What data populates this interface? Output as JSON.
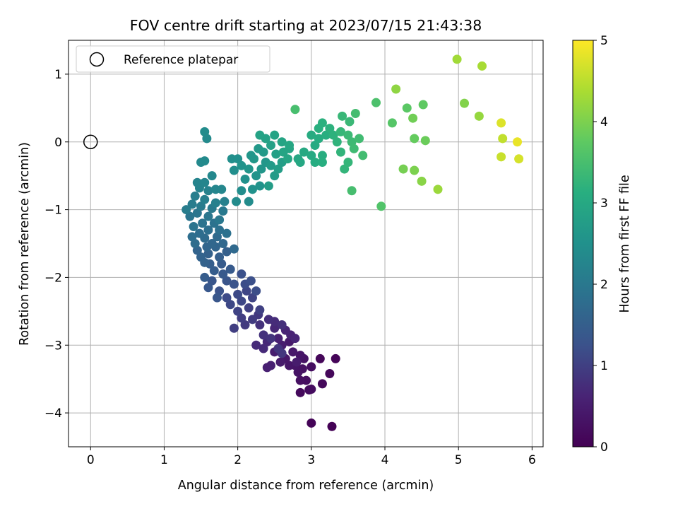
{
  "chart_data": {
    "type": "scatter",
    "title": "FOV centre drift starting at 2023/07/15 21:43:38",
    "xlabel": "Angular distance from reference (arcmin)",
    "ylabel": "Rotation from reference (arcmin)",
    "xlim": [
      -0.3,
      6.15
    ],
    "ylim": [
      -4.5,
      1.5
    ],
    "xticks": [
      0,
      1,
      2,
      3,
      4,
      5,
      6
    ],
    "yticks": [
      1,
      0,
      -1,
      -2,
      -3,
      -4
    ],
    "grid": true,
    "legend": {
      "placement": "upper-left",
      "entries": [
        "Reference platepar"
      ]
    },
    "reference_point": {
      "x": 0,
      "y": 0,
      "marker": "open-circle"
    },
    "colorbar": {
      "label": "Hours from first FF file",
      "range": [
        0,
        5
      ],
      "ticks": [
        0,
        1,
        2,
        3,
        4,
        5
      ],
      "colormap": "viridis"
    },
    "series": [
      {
        "points": [
          [
            3.28,
            -4.2,
            0.02
          ],
          [
            3.0,
            -4.15,
            0.05
          ],
          [
            3.33,
            -3.2,
            0.08
          ],
          [
            3.12,
            -3.2,
            0.1
          ],
          [
            3.25,
            -3.42,
            0.12
          ],
          [
            3.15,
            -3.57,
            0.14
          ],
          [
            2.85,
            -3.7,
            0.16
          ],
          [
            2.97,
            -3.66,
            0.18
          ],
          [
            3.0,
            -3.65,
            0.2
          ],
          [
            3.0,
            -3.32,
            0.22
          ],
          [
            2.93,
            -3.52,
            0.24
          ],
          [
            2.85,
            -3.52,
            0.26
          ],
          [
            2.88,
            -3.35,
            0.28
          ],
          [
            2.9,
            -3.2,
            0.3
          ],
          [
            2.82,
            -3.4,
            0.32
          ],
          [
            2.78,
            -3.3,
            0.34
          ],
          [
            2.85,
            -3.15,
            0.36
          ],
          [
            2.7,
            -3.3,
            0.38
          ],
          [
            2.65,
            -3.2,
            0.4
          ],
          [
            2.75,
            -3.1,
            0.42
          ],
          [
            2.7,
            -2.95,
            0.44
          ],
          [
            2.58,
            -3.25,
            0.46
          ],
          [
            2.8,
            -3.25,
            0.48
          ],
          [
            2.6,
            -3.0,
            0.5
          ],
          [
            2.5,
            -3.1,
            0.52
          ],
          [
            2.45,
            -3.3,
            0.54
          ],
          [
            2.4,
            -3.33,
            0.56
          ],
          [
            2.55,
            -2.9,
            0.58
          ],
          [
            2.72,
            -2.85,
            0.6
          ],
          [
            2.65,
            -2.78,
            0.62
          ],
          [
            2.78,
            -2.9,
            0.64
          ],
          [
            2.5,
            -2.75,
            0.66
          ],
          [
            2.4,
            -2.95,
            0.68
          ],
          [
            2.35,
            -3.05,
            0.7
          ],
          [
            2.25,
            -3.0,
            0.72
          ],
          [
            2.5,
            -2.65,
            0.74
          ],
          [
            2.42,
            -2.62,
            0.76
          ],
          [
            2.6,
            -2.7,
            0.78
          ],
          [
            2.3,
            -2.7,
            0.8
          ],
          [
            2.35,
            -2.85,
            0.82
          ],
          [
            2.45,
            -2.9,
            0.84
          ],
          [
            2.55,
            -3.05,
            0.86
          ],
          [
            2.6,
            -3.12,
            0.88
          ],
          [
            2.28,
            -2.55,
            0.9
          ],
          [
            2.1,
            -2.7,
            0.92
          ],
          [
            2.2,
            -2.62,
            0.94
          ],
          [
            2.05,
            -2.6,
            0.96
          ],
          [
            1.95,
            -2.75,
            0.98
          ],
          [
            2.15,
            -2.45,
            1.0
          ],
          [
            2.3,
            -2.48,
            1.02
          ],
          [
            2.0,
            -2.5,
            1.04
          ],
          [
            2.2,
            -2.3,
            1.06
          ],
          [
            2.12,
            -2.2,
            1.08
          ],
          [
            2.05,
            -2.35,
            1.1
          ],
          [
            1.9,
            -2.4,
            1.12
          ],
          [
            2.0,
            -2.25,
            1.14
          ],
          [
            1.85,
            -2.3,
            1.16
          ],
          [
            2.1,
            -2.1,
            1.18
          ],
          [
            2.25,
            -2.2,
            1.2
          ],
          [
            2.18,
            -2.05,
            1.22
          ],
          [
            2.05,
            -1.95,
            1.24
          ],
          [
            1.75,
            -2.2,
            1.26
          ],
          [
            1.95,
            -2.1,
            1.28
          ],
          [
            1.85,
            -2.05,
            1.3
          ],
          [
            1.65,
            -2.05,
            1.32
          ],
          [
            1.72,
            -2.3,
            1.34
          ],
          [
            1.6,
            -2.15,
            1.36
          ],
          [
            1.8,
            -1.95,
            1.38
          ],
          [
            1.9,
            -1.88,
            1.4
          ],
          [
            1.78,
            -1.8,
            1.42
          ],
          [
            1.55,
            -2.0,
            1.44
          ],
          [
            1.68,
            -1.9,
            1.46
          ],
          [
            1.62,
            -1.8,
            1.48
          ],
          [
            1.75,
            -1.7,
            1.5
          ],
          [
            1.85,
            -1.62,
            1.52
          ],
          [
            1.6,
            -1.65,
            1.54
          ],
          [
            1.55,
            -1.78,
            1.56
          ],
          [
            1.5,
            -1.7,
            1.58
          ],
          [
            1.45,
            -1.6,
            1.6
          ],
          [
            1.7,
            -1.55,
            1.62
          ],
          [
            1.58,
            -1.55,
            1.64
          ],
          [
            1.65,
            -1.5,
            1.66
          ],
          [
            1.8,
            -1.5,
            1.68
          ],
          [
            1.95,
            -1.58,
            1.7
          ],
          [
            1.72,
            -1.4,
            1.72
          ],
          [
            1.55,
            -1.42,
            1.74
          ],
          [
            1.42,
            -1.5,
            1.76
          ],
          [
            1.48,
            -1.35,
            1.78
          ],
          [
            1.38,
            -1.4,
            1.8
          ],
          [
            1.6,
            -1.3,
            1.82
          ],
          [
            1.75,
            -1.3,
            1.84
          ],
          [
            1.85,
            -1.35,
            1.86
          ],
          [
            1.68,
            -1.2,
            1.88
          ],
          [
            1.52,
            -1.2,
            1.9
          ],
          [
            1.4,
            -1.25,
            1.92
          ],
          [
            1.35,
            -1.1,
            1.94
          ],
          [
            1.45,
            -1.05,
            1.96
          ],
          [
            1.6,
            -1.1,
            1.98
          ],
          [
            1.75,
            -1.15,
            2.0
          ],
          [
            1.8,
            -1.02,
            2.02
          ],
          [
            1.65,
            -0.98,
            2.04
          ],
          [
            1.5,
            -0.95,
            2.06
          ],
          [
            1.38,
            -0.92,
            2.08
          ],
          [
            1.3,
            -1.0,
            2.1
          ],
          [
            1.42,
            -0.8,
            2.12
          ],
          [
            1.55,
            -0.85,
            2.14
          ],
          [
            1.7,
            -0.9,
            2.16
          ],
          [
            1.82,
            -0.88,
            2.18
          ],
          [
            1.6,
            -0.72,
            2.2
          ],
          [
            1.48,
            -0.68,
            2.22
          ],
          [
            1.45,
            -0.6,
            2.24
          ],
          [
            1.55,
            -0.6,
            2.26
          ],
          [
            1.7,
            -0.7,
            2.28
          ],
          [
            1.78,
            -0.7,
            2.3
          ],
          [
            1.65,
            -0.5,
            2.32
          ],
          [
            1.5,
            -0.3,
            2.34
          ],
          [
            1.55,
            -0.28,
            2.36
          ],
          [
            1.98,
            -0.88,
            2.38
          ],
          [
            2.15,
            -0.88,
            2.4
          ],
          [
            2.05,
            -0.72,
            2.42
          ],
          [
            1.95,
            -0.42,
            2.44
          ],
          [
            1.92,
            -0.25,
            2.46
          ],
          [
            2.0,
            -0.25,
            2.48
          ],
          [
            2.1,
            -0.55,
            2.5
          ],
          [
            2.2,
            -0.7,
            2.52
          ],
          [
            2.3,
            -0.65,
            2.54
          ],
          [
            2.25,
            -0.5,
            2.56
          ],
          [
            2.15,
            -0.4,
            2.58
          ],
          [
            2.32,
            -0.4,
            2.6
          ],
          [
            2.38,
            -0.3,
            2.62
          ],
          [
            2.22,
            -0.25,
            2.64
          ],
          [
            2.28,
            -0.1,
            2.66
          ],
          [
            2.35,
            -0.15,
            2.68
          ],
          [
            2.45,
            -0.35,
            2.7
          ],
          [
            2.5,
            -0.5,
            2.72
          ],
          [
            2.42,
            -0.65,
            2.74
          ],
          [
            2.55,
            -0.4,
            2.76
          ],
          [
            2.6,
            -0.3,
            2.78
          ],
          [
            2.52,
            -0.18,
            2.8
          ],
          [
            2.45,
            -0.05,
            2.82
          ],
          [
            2.38,
            0.05,
            2.84
          ],
          [
            2.3,
            0.1,
            2.86
          ],
          [
            2.5,
            0.1,
            2.88
          ],
          [
            2.6,
            0.0,
            2.9
          ],
          [
            2.7,
            -0.1,
            2.92
          ],
          [
            2.68,
            -0.25,
            2.94
          ],
          [
            2.82,
            -0.25,
            2.96
          ],
          [
            2.85,
            -0.3,
            2.98
          ],
          [
            2.9,
            -0.15,
            3.0
          ],
          [
            3.0,
            -0.2,
            3.02
          ],
          [
            3.05,
            -0.05,
            3.04
          ],
          [
            3.0,
            0.1,
            3.06
          ],
          [
            3.1,
            0.05,
            3.08
          ],
          [
            3.15,
            -0.2,
            3.1
          ],
          [
            3.2,
            0.1,
            3.12
          ],
          [
            3.1,
            0.2,
            3.14
          ],
          [
            3.15,
            0.28,
            3.16
          ],
          [
            3.25,
            0.2,
            3.18
          ],
          [
            3.3,
            0.1,
            3.2
          ],
          [
            3.35,
            0.0,
            3.22
          ],
          [
            3.4,
            -0.15,
            3.24
          ],
          [
            3.45,
            -0.4,
            3.26
          ],
          [
            3.5,
            -0.3,
            3.28
          ],
          [
            3.4,
            0.15,
            3.3
          ],
          [
            3.42,
            0.38,
            3.32
          ],
          [
            3.52,
            0.3,
            3.34
          ],
          [
            3.5,
            0.1,
            3.36
          ],
          [
            3.55,
            0.0,
            3.38
          ],
          [
            3.58,
            -0.1,
            3.4
          ],
          [
            3.65,
            0.05,
            3.42
          ],
          [
            3.7,
            -0.2,
            3.44
          ],
          [
            3.6,
            0.42,
            3.46
          ],
          [
            3.55,
            -0.72,
            3.48
          ],
          [
            2.78,
            0.48,
            3.5
          ],
          [
            3.88,
            0.58,
            3.55
          ],
          [
            3.95,
            -0.95,
            3.6
          ],
          [
            4.1,
            0.28,
            3.65
          ],
          [
            4.3,
            0.5,
            3.7
          ],
          [
            4.52,
            0.55,
            3.75
          ],
          [
            4.4,
            0.05,
            3.8
          ],
          [
            4.55,
            0.02,
            3.85
          ],
          [
            4.38,
            0.35,
            3.9
          ],
          [
            4.25,
            -0.4,
            3.95
          ],
          [
            4.4,
            -0.42,
            4.0
          ],
          [
            5.08,
            0.57,
            4.05
          ],
          [
            4.5,
            -0.58,
            4.1
          ],
          [
            4.15,
            0.78,
            4.15
          ],
          [
            5.28,
            0.38,
            4.2
          ],
          [
            4.72,
            -0.7,
            4.25
          ],
          [
            4.98,
            1.22,
            4.3
          ],
          [
            5.32,
            1.12,
            4.35
          ],
          [
            5.6,
            0.05,
            4.55
          ],
          [
            5.58,
            -0.22,
            4.6
          ],
          [
            5.82,
            -0.25,
            4.7
          ],
          [
            5.58,
            0.28,
            4.75
          ],
          [
            5.8,
            0.0,
            4.85
          ],
          [
            1.58,
            0.05,
            2.35
          ],
          [
            1.55,
            0.15,
            2.4
          ],
          [
            3.05,
            -0.3,
            3.08
          ],
          [
            3.15,
            -0.3,
            3.12
          ],
          [
            2.62,
            -0.15,
            2.9
          ],
          [
            2.7,
            -0.05,
            2.95
          ],
          [
            2.18,
            -0.2,
            2.6
          ],
          [
            2.05,
            -0.35,
            2.55
          ]
        ]
      }
    ]
  }
}
